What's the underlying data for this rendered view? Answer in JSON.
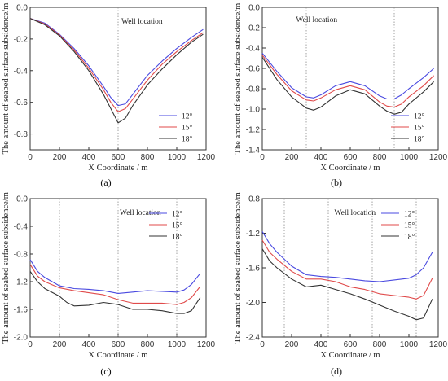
{
  "figure": {
    "ylabel": "The amount of seabed surface subsidence/m",
    "xlabel": "X Coordinate / m",
    "annotation": "Well location"
  },
  "colors": {
    "12°": "#4a4ae0",
    "15°": "#e04a4a",
    "18°": "#333333",
    "guide": "#8a8a8a"
  },
  "chart_data": [
    {
      "type": "line",
      "panel": "(a)",
      "xlabel": "X Coordinate / m",
      "ylabel": "The amount of seabed surface subsidence/m",
      "xlim": [
        0,
        1200
      ],
      "ylim": [
        -0.9,
        0.0
      ],
      "xticks": [
        0,
        200,
        400,
        600,
        800,
        1000,
        1200
      ],
      "yticks": [
        0.0,
        -0.2,
        -0.4,
        -0.6,
        -0.8
      ],
      "annotation": "Well location",
      "well_locations": [
        600
      ],
      "legend_position": "bottom-right",
      "series": [
        {
          "name": "12°",
          "x": [
            0,
            100,
            200,
            300,
            400,
            500,
            550,
            600,
            650,
            700,
            800,
            900,
            1000,
            1100,
            1180
          ],
          "y": [
            -0.07,
            -0.1,
            -0.17,
            -0.26,
            -0.37,
            -0.5,
            -0.57,
            -0.62,
            -0.61,
            -0.55,
            -0.43,
            -0.34,
            -0.26,
            -0.19,
            -0.14
          ]
        },
        {
          "name": "15°",
          "x": [
            0,
            100,
            200,
            300,
            400,
            500,
            550,
            600,
            650,
            700,
            800,
            900,
            1000,
            1100,
            1180
          ],
          "y": [
            -0.07,
            -0.105,
            -0.175,
            -0.27,
            -0.385,
            -0.52,
            -0.6,
            -0.66,
            -0.64,
            -0.58,
            -0.46,
            -0.36,
            -0.28,
            -0.21,
            -0.16
          ]
        },
        {
          "name": "18°",
          "x": [
            0,
            100,
            200,
            300,
            400,
            500,
            550,
            600,
            650,
            700,
            800,
            900,
            1000,
            1100,
            1180
          ],
          "y": [
            -0.07,
            -0.11,
            -0.18,
            -0.28,
            -0.4,
            -0.55,
            -0.64,
            -0.73,
            -0.7,
            -0.62,
            -0.49,
            -0.39,
            -0.3,
            -0.22,
            -0.17
          ]
        }
      ]
    },
    {
      "type": "line",
      "panel": "(b)",
      "xlabel": "X Coordinate / m",
      "ylabel": "The amount of seabed surface subsidence/m",
      "xlim": [
        0,
        1200
      ],
      "ylim": [
        -1.4,
        0.0
      ],
      "xticks": [
        0,
        200,
        400,
        600,
        800,
        1000,
        1200
      ],
      "yticks": [
        0.0,
        -0.2,
        -0.4,
        -0.6,
        -0.8,
        -1.0,
        -1.2,
        -1.4
      ],
      "annotation": "Well location",
      "well_locations": [
        300,
        900
      ],
      "legend_position": "bottom-right",
      "series": [
        {
          "name": "12°",
          "x": [
            0,
            100,
            200,
            300,
            350,
            400,
            500,
            600,
            700,
            800,
            850,
            900,
            950,
            1000,
            1100,
            1170
          ],
          "y": [
            -0.45,
            -0.63,
            -0.79,
            -0.88,
            -0.89,
            -0.86,
            -0.77,
            -0.73,
            -0.77,
            -0.87,
            -0.9,
            -0.9,
            -0.86,
            -0.8,
            -0.69,
            -0.6
          ]
        },
        {
          "name": "15°",
          "x": [
            0,
            100,
            200,
            300,
            350,
            400,
            500,
            600,
            700,
            800,
            850,
            900,
            950,
            1000,
            1100,
            1170
          ],
          "y": [
            -0.47,
            -0.66,
            -0.82,
            -0.91,
            -0.92,
            -0.89,
            -0.81,
            -0.77,
            -0.81,
            -0.93,
            -0.97,
            -0.98,
            -0.95,
            -0.88,
            -0.77,
            -0.67
          ]
        },
        {
          "name": "18°",
          "x": [
            0,
            100,
            200,
            300,
            350,
            400,
            500,
            600,
            700,
            800,
            850,
            900,
            950,
            1000,
            1100,
            1170
          ],
          "y": [
            -0.49,
            -0.71,
            -0.88,
            -0.99,
            -1.01,
            -0.98,
            -0.87,
            -0.81,
            -0.85,
            -0.97,
            -1.02,
            -1.05,
            -1.03,
            -0.95,
            -0.83,
            -0.73
          ]
        }
      ]
    },
    {
      "type": "line",
      "panel": "(c)",
      "xlabel": "X Coordinate / m",
      "ylabel": "The amount of seabed surface subsidence/m",
      "xlim": [
        0,
        1200
      ],
      "ylim": [
        -2.0,
        0.0
      ],
      "xticks": [
        0,
        200,
        400,
        600,
        800,
        1000,
        1200
      ],
      "yticks": [
        0.0,
        -0.4,
        -0.8,
        -1.2,
        -1.6,
        -2.0
      ],
      "annotation": "Well location",
      "well_locations": [
        200,
        600,
        1000
      ],
      "legend_position": "top-right",
      "series": [
        {
          "name": "12°",
          "x": [
            0,
            50,
            100,
            200,
            300,
            400,
            500,
            600,
            700,
            800,
            900,
            1000,
            1050,
            1100,
            1160
          ],
          "y": [
            -0.88,
            -1.05,
            -1.14,
            -1.26,
            -1.3,
            -1.31,
            -1.33,
            -1.37,
            -1.35,
            -1.33,
            -1.34,
            -1.35,
            -1.32,
            -1.24,
            -1.08
          ]
        },
        {
          "name": "15°",
          "x": [
            0,
            50,
            100,
            200,
            300,
            400,
            500,
            600,
            700,
            800,
            900,
            1000,
            1050,
            1100,
            1160
          ],
          "y": [
            -0.95,
            -1.12,
            -1.2,
            -1.29,
            -1.33,
            -1.36,
            -1.39,
            -1.46,
            -1.51,
            -1.51,
            -1.51,
            -1.53,
            -1.5,
            -1.43,
            -1.27
          ]
        },
        {
          "name": "18°",
          "x": [
            0,
            50,
            100,
            200,
            250,
            300,
            400,
            500,
            600,
            700,
            800,
            900,
            1000,
            1050,
            1100,
            1160
          ],
          "y": [
            -1.05,
            -1.2,
            -1.3,
            -1.41,
            -1.5,
            -1.55,
            -1.54,
            -1.5,
            -1.53,
            -1.6,
            -1.6,
            -1.62,
            -1.66,
            -1.66,
            -1.62,
            -1.43
          ]
        }
      ]
    },
    {
      "type": "line",
      "panel": "(d)",
      "xlabel": "X Coordinate / m",
      "ylabel": "The amount of seabed surface subsidence/m",
      "xlim": [
        0,
        1200
      ],
      "ylim": [
        -2.4,
        -0.8
      ],
      "xticks": [
        0,
        200,
        400,
        600,
        800,
        1000,
        1200
      ],
      "yticks": [
        -0.8,
        -1.2,
        -1.6,
        -2.0,
        -2.4
      ],
      "annotation": "Well location",
      "well_locations": [
        150,
        450,
        750,
        1050
      ],
      "legend_position": "top-right",
      "series": [
        {
          "name": "12°",
          "x": [
            0,
            50,
            100,
            200,
            300,
            400,
            500,
            600,
            700,
            800,
            900,
            1000,
            1050,
            1100,
            1160
          ],
          "y": [
            -1.18,
            -1.32,
            -1.42,
            -1.58,
            -1.68,
            -1.7,
            -1.71,
            -1.73,
            -1.75,
            -1.76,
            -1.74,
            -1.72,
            -1.68,
            -1.6,
            -1.42
          ]
        },
        {
          "name": "15°",
          "x": [
            0,
            50,
            100,
            200,
            300,
            400,
            500,
            600,
            700,
            800,
            900,
            1000,
            1050,
            1100,
            1160
          ],
          "y": [
            -1.28,
            -1.42,
            -1.5,
            -1.64,
            -1.73,
            -1.73,
            -1.76,
            -1.82,
            -1.85,
            -1.9,
            -1.92,
            -1.94,
            -1.96,
            -1.92,
            -1.72
          ]
        },
        {
          "name": "18°",
          "x": [
            0,
            50,
            100,
            200,
            300,
            400,
            500,
            600,
            700,
            800,
            900,
            1000,
            1050,
            1100,
            1160
          ],
          "y": [
            -1.38,
            -1.52,
            -1.6,
            -1.73,
            -1.82,
            -1.8,
            -1.85,
            -1.9,
            -1.96,
            -2.03,
            -2.1,
            -2.16,
            -2.2,
            -2.18,
            -1.96
          ]
        }
      ]
    }
  ]
}
